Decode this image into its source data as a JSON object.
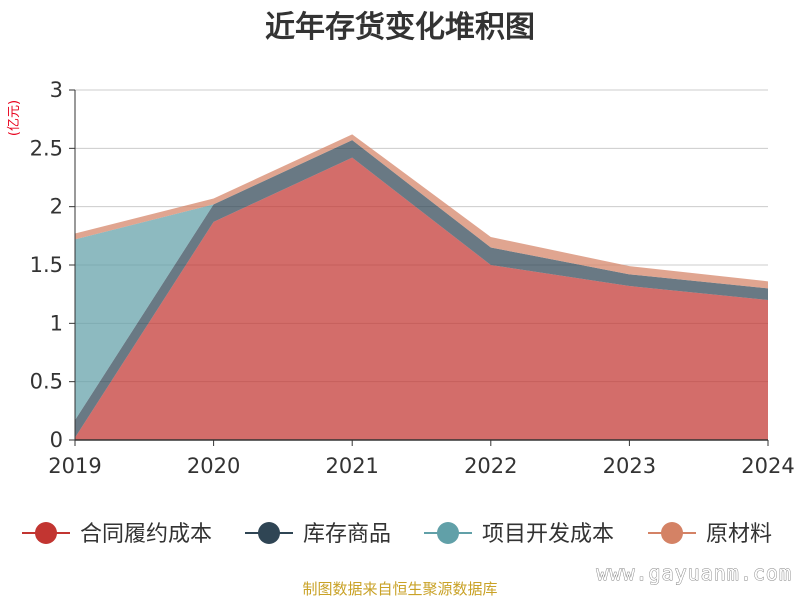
{
  "chart_data": {
    "type": "area",
    "stacked": true,
    "title": "近年存货变化堆积图",
    "unit_label": "(亿元)",
    "categories": [
      "2019",
      "2020",
      "2021",
      "2022",
      "2023",
      "2024"
    ],
    "ylim": [
      0,
      3
    ],
    "yticks": [
      "0",
      "0.5",
      "1",
      "1.5",
      "2",
      "2.5",
      "3"
    ],
    "grid": true,
    "legend_position": "bottom",
    "series": [
      {
        "name": "合同履约成本",
        "color": "#c23531",
        "values": [
          0.02,
          1.87,
          2.42,
          1.5,
          1.32,
          1.2
        ]
      },
      {
        "name": "库存商品",
        "color": "#2f4554",
        "values": [
          0.15,
          0.15,
          0.15,
          0.15,
          0.1,
          0.1
        ]
      },
      {
        "name": "项目开发成本",
        "color": "#61a0a8",
        "values": [
          1.55,
          0.0,
          0.0,
          0.0,
          0.0,
          0.0
        ]
      },
      {
        "name": "原材料",
        "color": "#d48265",
        "values": [
          0.05,
          0.05,
          0.05,
          0.09,
          0.07,
          0.06
        ]
      }
    ]
  },
  "source_text": "制图数据来自恒生聚源数据库",
  "watermark_text": "www.gayuanm.com"
}
